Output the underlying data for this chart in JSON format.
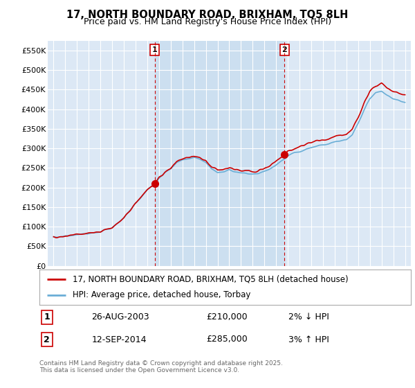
{
  "title": "17, NORTH BOUNDARY ROAD, BRIXHAM, TQ5 8LH",
  "subtitle": "Price paid vs. HM Land Registry's House Price Index (HPI)",
  "legend_line1": "17, NORTH BOUNDARY ROAD, BRIXHAM, TQ5 8LH (detached house)",
  "legend_line2": "HPI: Average price, detached house, Torbay",
  "sale1_label": "1",
  "sale1_date": "26-AUG-2003",
  "sale1_price": "£210,000",
  "sale1_hpi": "2% ↓ HPI",
  "sale2_label": "2",
  "sale2_date": "12-SEP-2014",
  "sale2_price": "£285,000",
  "sale2_hpi": "3% ↑ HPI",
  "footer": "Contains HM Land Registry data © Crown copyright and database right 2025.\nThis data is licensed under the Open Government Licence v3.0.",
  "hpi_color": "#6aaed6",
  "price_color": "#cc0000",
  "vline_color": "#cc0000",
  "plot_bg_color": "#dce8f5",
  "highlight_bg_color": "#ccdff0",
  "ylim": [
    0,
    575000
  ],
  "yticks": [
    0,
    50000,
    100000,
    150000,
    200000,
    250000,
    300000,
    350000,
    400000,
    450000,
    500000,
    550000
  ],
  "sale1_x": 2003.64,
  "sale1_y": 210000,
  "sale2_x": 2014.71,
  "sale2_y": 285000,
  "xmin": 1995,
  "xmax": 2025
}
